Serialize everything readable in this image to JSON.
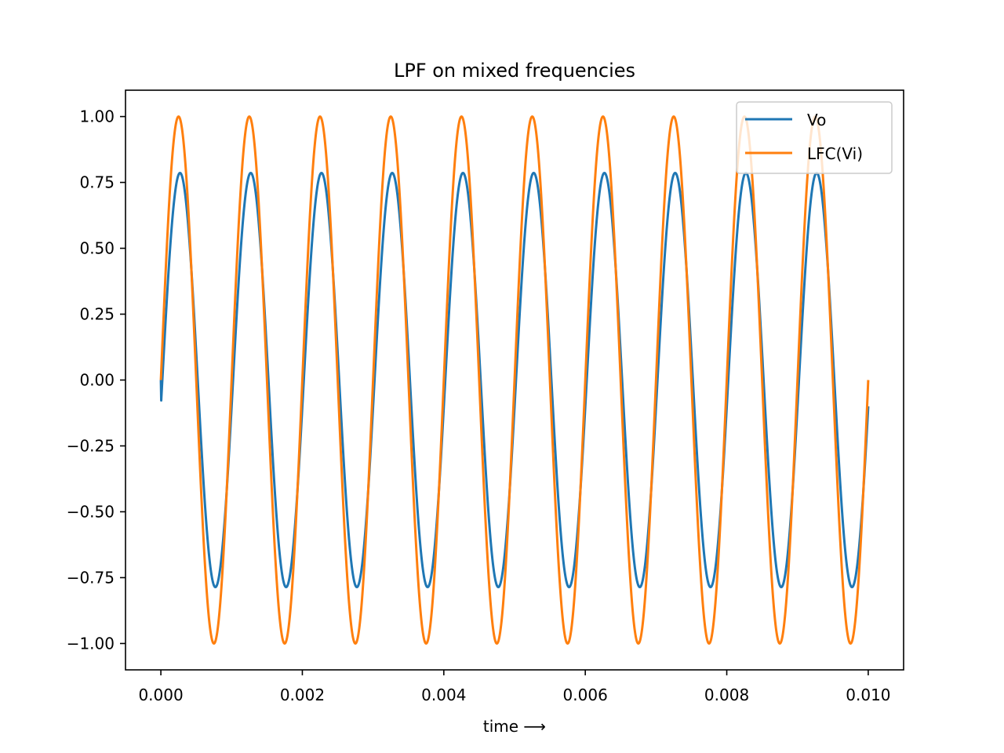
{
  "chart_data": {
    "type": "line",
    "title": "LPF on mixed frequencies",
    "xlabel": "time ⟶",
    "ylabel": "",
    "xlim": [
      -0.0005,
      0.0105
    ],
    "ylim": [
      -1.1,
      1.1
    ],
    "xticks": [
      0.0,
      0.002,
      0.004,
      0.006,
      0.008,
      0.01
    ],
    "xtick_labels": [
      "0.000",
      "0.002",
      "0.004",
      "0.006",
      "0.008",
      "0.010"
    ],
    "yticks": [
      1.0,
      0.75,
      0.5,
      0.25,
      0.0,
      -0.25,
      -0.5,
      -0.75,
      -1.0
    ],
    "ytick_labels": [
      "1.00",
      "0.75",
      "0.50",
      "0.25",
      "0.00",
      "−0.25",
      "−0.50",
      "−0.75",
      "−1.00"
    ],
    "grid": false,
    "legend_position": "top-right",
    "series": [
      {
        "name": "Vo",
        "color": "#1f77b4",
        "frequency_hz": 1000,
        "amplitude": 0.786,
        "x_start": 0.0,
        "x_end": 0.01,
        "start_value": 0.0,
        "end_value": -0.1
      },
      {
        "name": "LFC(Vi)",
        "color": "#ff7f0e",
        "frequency_hz": 1000,
        "amplitude": 1.0,
        "x_start": 0.0,
        "x_end": 0.01,
        "start_value": 0.0,
        "end_value": 0.0
      }
    ]
  }
}
